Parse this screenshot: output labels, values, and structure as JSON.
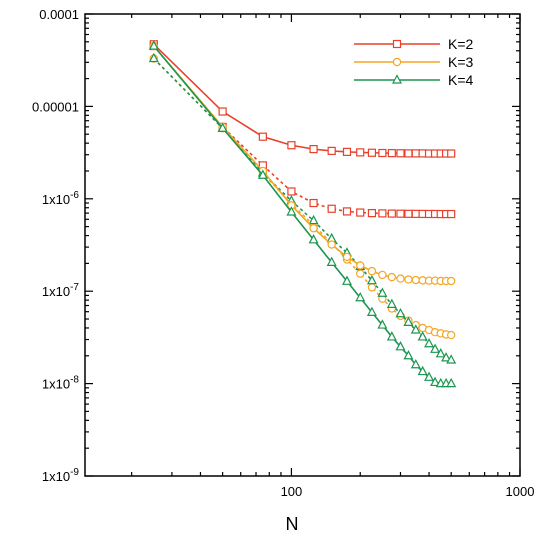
{
  "chart_data": {
    "type": "line",
    "title": "",
    "xlabel": "N",
    "ylabel": "",
    "xscale": "log",
    "yscale": "log",
    "xlim": [
      12.5,
      1000
    ],
    "ylim": [
      1e-09,
      0.0001
    ],
    "x_ticks": [
      {
        "value": 100,
        "label": "100"
      },
      {
        "value": 1000,
        "label": "1000"
      }
    ],
    "y_ticks": [
      {
        "value": 0.0001,
        "label": "0.0001"
      },
      {
        "value": 1e-05,
        "label": "0.00001"
      },
      {
        "value": 1e-06,
        "label": "1x10",
        "exp": "-6"
      },
      {
        "value": 1e-07,
        "label": "1x10",
        "exp": "-7"
      },
      {
        "value": 1e-08,
        "label": "1x10",
        "exp": "-8"
      },
      {
        "value": 1e-09,
        "label": "1x10",
        "exp": "-9"
      }
    ],
    "grid": false,
    "legend_position": "top-right",
    "x": [
      25,
      50,
      75,
      100,
      125,
      150,
      175,
      200,
      225,
      250,
      275,
      300,
      325,
      350,
      375,
      400,
      425,
      450,
      475,
      500
    ],
    "series": [
      {
        "name": "K=2",
        "color": "#e8402a",
        "marker": "square",
        "dash": "solid",
        "in_legend": true,
        "values": [
          4.7e-05,
          8.8e-06,
          4.7e-06,
          3.8e-06,
          3.45e-06,
          3.3e-06,
          3.22e-06,
          3.18e-06,
          3.15e-06,
          3.13e-06,
          3.12e-06,
          3.11e-06,
          3.1e-06,
          3.1e-06,
          3.1e-06,
          3.09e-06,
          3.09e-06,
          3.09e-06,
          3.09e-06,
          3.09e-06
        ]
      },
      {
        "name": "K=3",
        "color": "#f5a623",
        "marker": "circle",
        "dash": "solid",
        "in_legend": true,
        "values": [
          4.5e-05,
          6e-06,
          2e-06,
          8.5e-07,
          4.8e-07,
          3.2e-07,
          2.35e-07,
          1.9e-07,
          1.65e-07,
          1.5e-07,
          1.42e-07,
          1.37e-07,
          1.34e-07,
          1.32e-07,
          1.31e-07,
          1.3e-07,
          1.3e-07,
          1.29e-07,
          1.29e-07,
          1.29e-07
        ]
      },
      {
        "name": "K=4",
        "color": "#1a9650",
        "marker": "triangle",
        "dash": "solid",
        "in_legend": true,
        "values": [
          4.5e-05,
          5.8e-06,
          1.8e-06,
          7.2e-07,
          3.6e-07,
          2.05e-07,
          1.28e-07,
          8.5e-08,
          5.9e-08,
          4.3e-08,
          3.2e-08,
          2.5e-08,
          2e-08,
          1.6e-08,
          1.35e-08,
          1.17e-08,
          1.03e-08,
          1e-08,
          1e-08,
          1e-08
        ]
      },
      {
        "name": "",
        "color": "#e8402a",
        "marker": "square",
        "dash": "dashed",
        "in_legend": false,
        "values": [
          4.5e-05,
          6e-06,
          2.3e-06,
          1.2e-06,
          9e-07,
          7.8e-07,
          7.3e-07,
          7.1e-07,
          7e-07,
          6.95e-07,
          6.92e-07,
          6.9e-07,
          6.88e-07,
          6.87e-07,
          6.86e-07,
          6.85e-07,
          6.85e-07,
          6.84e-07,
          6.84e-07,
          6.84e-07
        ]
      },
      {
        "name": "",
        "color": "#f5a623",
        "marker": "circle",
        "dash": "dashed",
        "in_legend": false,
        "values": [
          3.3e-05,
          5.8e-06,
          1.9e-06,
          8.8e-07,
          5.2e-07,
          3.3e-07,
          2.2e-07,
          1.55e-07,
          1.1e-07,
          8.3e-08,
          6.5e-08,
          5.4e-08,
          4.8e-08,
          4.3e-08,
          4e-08,
          3.8e-08,
          3.6e-08,
          3.5e-08,
          3.4e-08,
          3.35e-08
        ]
      },
      {
        "name": "",
        "color": "#1a9650",
        "marker": "triangle",
        "dash": "dashed",
        "in_legend": false,
        "values": [
          3.3e-05,
          5.8e-06,
          1.9e-06,
          9.5e-07,
          5.8e-07,
          3.7e-07,
          2.6e-07,
          1.85e-07,
          1.3e-07,
          9.5e-08,
          7.2e-08,
          5.7e-08,
          4.6e-08,
          3.8e-08,
          3.2e-08,
          2.7e-08,
          2.35e-08,
          2.1e-08,
          1.9e-08,
          1.8e-08
        ]
      }
    ]
  }
}
